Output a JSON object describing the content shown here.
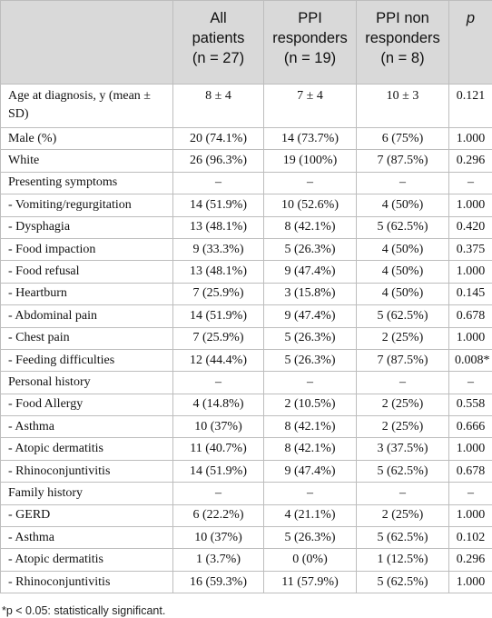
{
  "table": {
    "header": [
      {
        "lines": [
          "All",
          "patients",
          "(n = 27)"
        ]
      },
      {
        "lines": [
          "PPI",
          "responders",
          "(n = 19)"
        ]
      },
      {
        "lines": [
          "PPI non",
          "responders",
          "(n = 8)"
        ]
      },
      {
        "lines": [
          "p"
        ]
      }
    ],
    "rows": [
      [
        "Age at diagnosis, y (mean ± SD)",
        "8 ± 4",
        "7 ± 4",
        "10 ± 3",
        "0.121"
      ],
      [
        "Male (%)",
        "20 (74.1%)",
        "14 (73.7%)",
        "6 (75%)",
        "1.000"
      ],
      [
        "White",
        "26 (96.3%)",
        "19 (100%)",
        "7 (87.5%)",
        "0.296"
      ],
      [
        "Presenting symptoms",
        "–",
        "–",
        "–",
        "–"
      ],
      [
        "- Vomiting/regurgitation",
        "14 (51.9%)",
        "10 (52.6%)",
        "4 (50%)",
        "1.000"
      ],
      [
        "- Dysphagia",
        "13 (48.1%)",
        "8 (42.1%)",
        "5 (62.5%)",
        "0.420"
      ],
      [
        "- Food impaction",
        "9 (33.3%)",
        "5 (26.3%)",
        "4 (50%)",
        "0.375"
      ],
      [
        "- Food refusal",
        "13 (48.1%)",
        "9 (47.4%)",
        "4 (50%)",
        "1.000"
      ],
      [
        "- Heartburn",
        "7 (25.9%)",
        "3 (15.8%)",
        "4 (50%)",
        "0.145"
      ],
      [
        "- Abdominal pain",
        "14 (51.9%)",
        "9 (47.4%)",
        "5 (62.5%)",
        "0.678"
      ],
      [
        "- Chest pain",
        "7 (25.9%)",
        "5 (26.3%)",
        "2 (25%)",
        "1.000"
      ],
      [
        "- Feeding difficulties",
        "12 (44.4%)",
        "5 (26.3%)",
        "7 (87.5%)",
        "0.008*"
      ],
      [
        "Personal history",
        "–",
        "–",
        "–",
        "–"
      ],
      [
        "- Food Allergy",
        "4 (14.8%)",
        "2 (10.5%)",
        "2 (25%)",
        "0.558"
      ],
      [
        "- Asthma",
        "10 (37%)",
        "8 (42.1%)",
        "2 (25%)",
        "0.666"
      ],
      [
        "- Atopic dermatitis",
        "11 (40.7%)",
        "8 (42.1%)",
        "3 (37.5%)",
        "1.000"
      ],
      [
        "- Rhinoconjuntivitis",
        "14 (51.9%)",
        "9 (47.4%)",
        "5 (62.5%)",
        "0.678"
      ],
      [
        "Family history",
        "–",
        "–",
        "–",
        "–"
      ],
      [
        "- GERD",
        "6 (22.2%)",
        "4 (21.1%)",
        "2 (25%)",
        "1.000"
      ],
      [
        "- Asthma",
        "10 (37%)",
        "5 (26.3%)",
        "5 (62.5%)",
        "0.102"
      ],
      [
        "- Atopic dermatitis",
        "1 (3.7%)",
        "0 (0%)",
        "1 (12.5%)",
        "0.296"
      ],
      [
        "- Rhinoconjuntivitis",
        "16 (59.3%)",
        "11 (57.9%)",
        "5 (62.5%)",
        "1.000"
      ]
    ]
  },
  "footnote": "*p < 0.05: statistically significant."
}
